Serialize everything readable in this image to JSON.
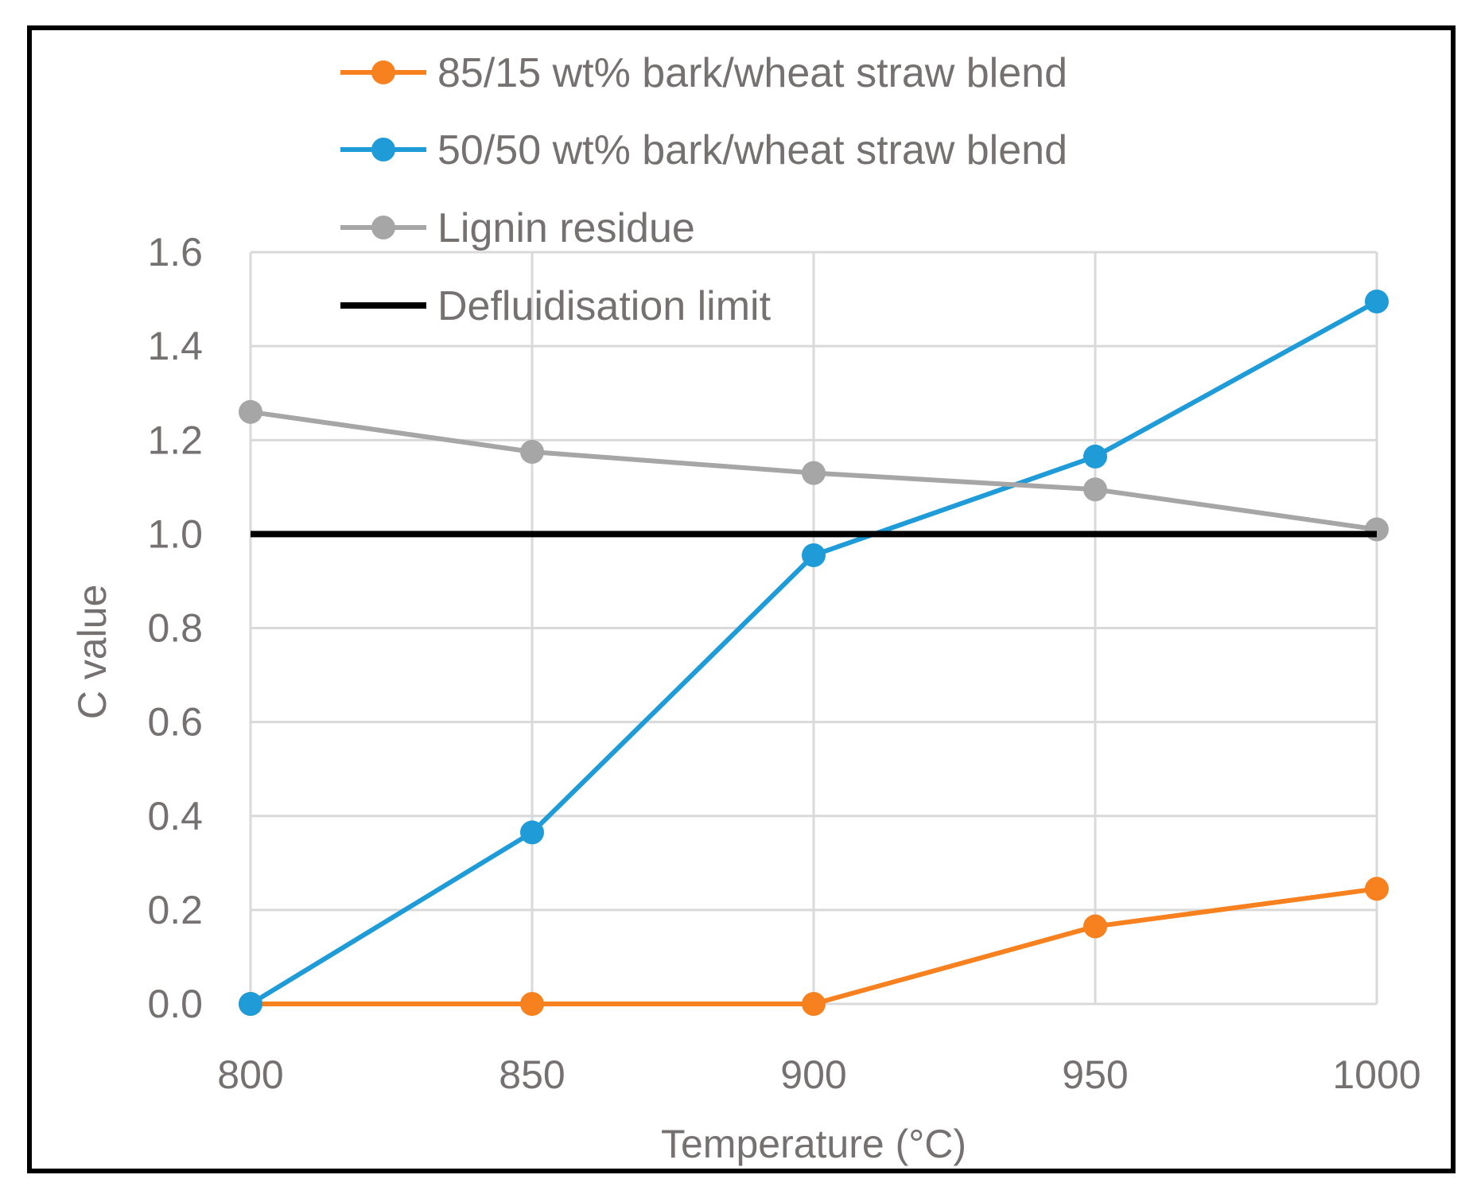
{
  "chart_data": {
    "type": "line",
    "title": "",
    "xlabel": "Temperature (°C)",
    "ylabel": "C value",
    "x": [
      800,
      850,
      900,
      950,
      1000
    ],
    "x_tick_labels": [
      "800",
      "850",
      "900",
      "950",
      "1000"
    ],
    "y_tick_labels": [
      "0.0",
      "0.2",
      "0.4",
      "0.6",
      "0.8",
      "1.0",
      "1.2",
      "1.4",
      "1.6"
    ],
    "xlim": [
      800,
      1000
    ],
    "ylim": [
      0,
      1.6
    ],
    "grid": true,
    "legend_position": "top",
    "series": [
      {
        "name": "85/15 wt% bark/wheat straw blend",
        "color": "#F7801F",
        "marker": "circle",
        "values": [
          0.0,
          0.0,
          0.0,
          0.165,
          0.245
        ]
      },
      {
        "name": "50/50 wt% bark/wheat straw blend",
        "color": "#1F9BD8",
        "marker": "circle",
        "values": [
          0.0,
          0.365,
          0.955,
          1.165,
          1.495
        ]
      },
      {
        "name": "Lignin residue",
        "color": "#A6A6A6",
        "marker": "circle",
        "values": [
          1.26,
          1.175,
          1.13,
          1.095,
          1.01
        ]
      },
      {
        "name": "Defluidisation limit",
        "color": "#000000",
        "marker": "none",
        "values": [
          1.0,
          1.0,
          1.0,
          1.0,
          1.0
        ]
      }
    ]
  }
}
